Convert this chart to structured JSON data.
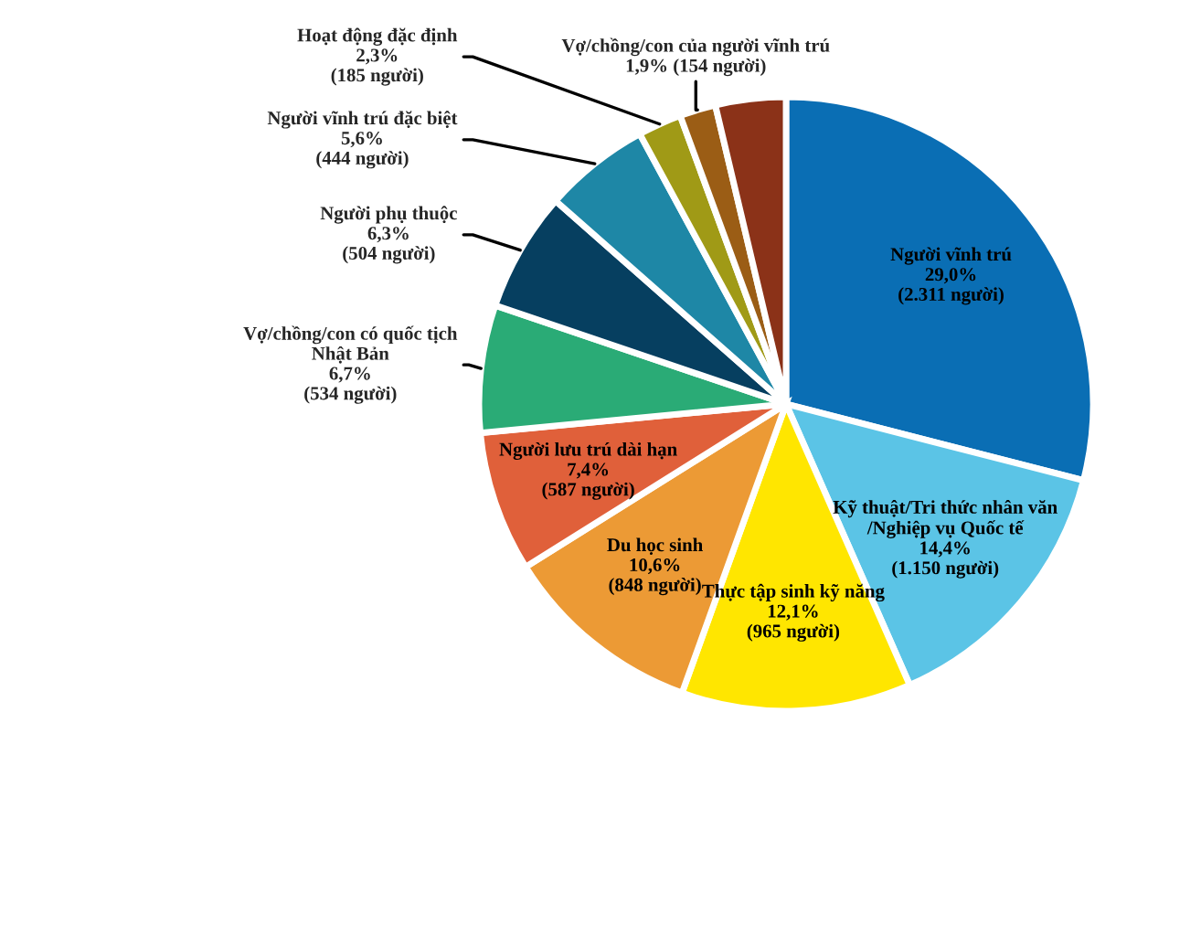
{
  "chart_data": {
    "type": "pie",
    "categories": [
      "Người vĩnh trú",
      "Kỹ thuật/Tri thức nhân văn\n/Nghiệp vụ Quốc tế",
      "Thực tập sinh kỹ năng",
      "Du học sinh",
      "Người lưu trú dài hạn",
      "Vợ/chồng/con có quốc tịch\nNhật Bản",
      "Người phụ thuộc",
      "Người vĩnh trú đặc biệt",
      "Hoạt động đặc định",
      "Vợ/chồng/con của người vĩnh trú",
      null
    ],
    "values": [
      29.0,
      14.4,
      12.1,
      10.6,
      7.4,
      6.7,
      6.3,
      5.6,
      2.3,
      1.9,
      3.7
    ],
    "value_labels": [
      "29,0%\n(2.311 người)",
      "14,4%\n(1.150 người)",
      "12,1%\n(965 người)",
      "10,6%\n(848 người)",
      "7,4%\n(587 người)",
      "6,7%\n(534 người)",
      "6,3%\n(504 người)",
      "5,6%\n(444 người)",
      "2,3%\n(185 người)",
      "1,9% (154 người)",
      null
    ],
    "colors": [
      "#0a6eb4",
      "#5bc4e6",
      "#ffe600",
      "#ec9a35",
      "#e0603a",
      "#2aab76",
      "#063f60",
      "#1e87a6",
      "#a09a16",
      "#9b5d15",
      "#8b3218"
    ]
  }
}
